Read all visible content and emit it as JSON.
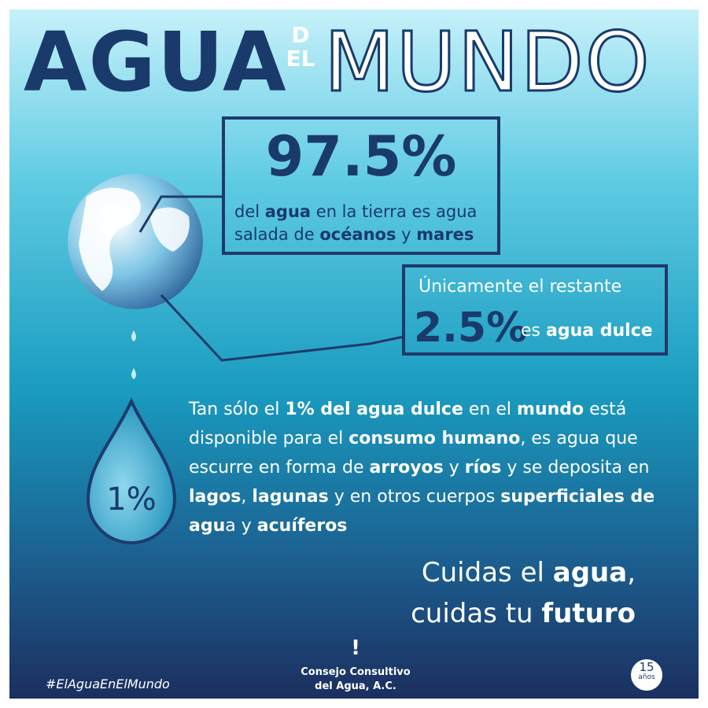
{
  "header": {
    "title_1": "AGUA",
    "title_2": "DEL",
    "title_3": "MUNDO"
  },
  "stat_main": {
    "value": "97.5%",
    "text": [
      {
        "t": "del "
      },
      {
        "t": "agua",
        "b": true
      },
      {
        "t": " en la tierra es agua salada de "
      },
      {
        "t": "océanos",
        "b": true
      },
      {
        "t": " y "
      },
      {
        "t": "mares",
        "b": true
      }
    ]
  },
  "stat_fresh": {
    "intro": "Únicamente el restante",
    "value": "2.5%",
    "text": [
      {
        "t": "es "
      },
      {
        "t": "agua dulce",
        "b": true
      }
    ]
  },
  "drop_label": "1%",
  "paragraph": [
    {
      "t": "Tan sólo el "
    },
    {
      "t": "1% del agua dulce",
      "b": true
    },
    {
      "t": " en el "
    },
    {
      "t": "mundo",
      "b": true
    },
    {
      "t": " está disponible para el "
    },
    {
      "t": "consumo humano",
      "b": true
    },
    {
      "t": ", es agua que escurre en forma de "
    },
    {
      "t": "arroyos",
      "b": true
    },
    {
      "t": " y "
    },
    {
      "t": "ríos",
      "b": true
    },
    {
      "t": " y se deposita en "
    },
    {
      "t": "lagos",
      "b": true
    },
    {
      "t": ", "
    },
    {
      "t": "lagunas",
      "b": true
    },
    {
      "t": " y en otros cuerpos "
    },
    {
      "t": "superficiales de agu",
      "b": true
    },
    {
      "t": "a y "
    },
    {
      "t": "acuíferos",
      "b": true
    }
  ],
  "slogan": [
    [
      {
        "t": "Cuidas el "
      },
      {
        "t": "agua",
        "b": true
      },
      {
        "t": ","
      }
    ],
    [
      {
        "t": "cuidas tu "
      },
      {
        "t": "futuro",
        "b": true
      }
    ]
  ],
  "hashtag": "#ElAguaEnElMundo",
  "org": [
    "Consejo Consultivo",
    "del Agua, A.C."
  ],
  "badge": {
    "number": "15",
    "word": "años"
  }
}
